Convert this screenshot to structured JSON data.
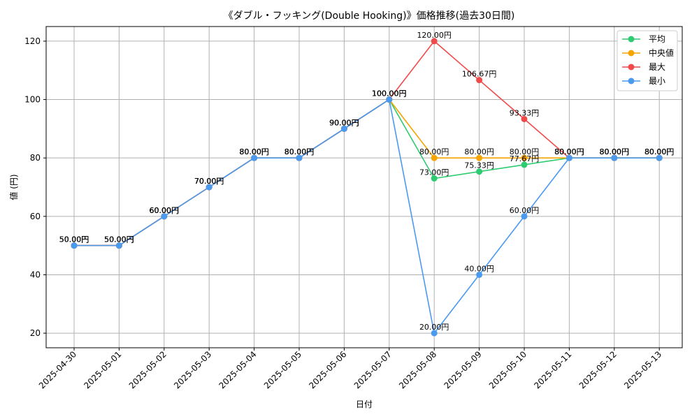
{
  "chart_data": {
    "type": "line",
    "title": "《ダブル・フッキング(Double Hooking)》価格推移(過去30日間)",
    "xlabel": "日付",
    "ylabel": "値 (円)",
    "ylim": [
      15,
      125
    ],
    "yticks": [
      20,
      40,
      60,
      80,
      100,
      120
    ],
    "grid": true,
    "legend_position": "top-right",
    "categories": [
      "2025-04-30",
      "2025-05-01",
      "2025-05-02",
      "2025-05-03",
      "2025-05-04",
      "2025-05-05",
      "2025-05-06",
      "2025-05-07",
      "2025-05-08",
      "2025-05-09",
      "2025-05-10",
      "2025-05-11",
      "2025-05-12",
      "2025-05-13"
    ],
    "series": [
      {
        "name": "平均",
        "color": "#2ecc71",
        "values": [
          50,
          50,
          60,
          70,
          80,
          80,
          90,
          100,
          73,
          75.33,
          77.67,
          80,
          80,
          80
        ],
        "labels": [
          "50.00円",
          "50.00円",
          "60.00円",
          "70.00円",
          "80.00円",
          "80.00円",
          "90.00円",
          "100.00円",
          "73.00円",
          "75.33円",
          "77.67円",
          "80.00円",
          "80.00円",
          "80.00円"
        ]
      },
      {
        "name": "中央値",
        "color": "#f5a400",
        "values": [
          50,
          50,
          60,
          70,
          80,
          80,
          90,
          100,
          80,
          80,
          80,
          80,
          80,
          80
        ],
        "labels": [
          "50.00円",
          "50.00円",
          "60.00円",
          "70.00円",
          "80.00円",
          "80.00円",
          "90.00円",
          "100.00円",
          "80.00円",
          "80.00円",
          "80.00円",
          "80.00円",
          "80.00円",
          "80.00円"
        ]
      },
      {
        "name": "最大",
        "color": "#f04a4a",
        "values": [
          50,
          50,
          60,
          70,
          80,
          80,
          90,
          100,
          120,
          106.67,
          93.33,
          80,
          80,
          80
        ],
        "labels": [
          "50.00円",
          "50.00円",
          "60.00円",
          "70.00円",
          "80.00円",
          "80.00円",
          "90.00円",
          "100.00円",
          "120.00円",
          "106.67円",
          "93.33円",
          "80.00円",
          "80.00円",
          "80.00円"
        ]
      },
      {
        "name": "最小",
        "color": "#4a9af0",
        "values": [
          50,
          50,
          60,
          70,
          80,
          80,
          90,
          100,
          20,
          40,
          60,
          80,
          80,
          80
        ],
        "labels": [
          "50.00円",
          "50.00円",
          "60.00円",
          "70.00円",
          "80.00円",
          "80.00円",
          "90.00円",
          "100.00円",
          "20.00円",
          "40.00円",
          "60.00円",
          "80.00円",
          "80.00円",
          "80.00円"
        ]
      }
    ]
  }
}
